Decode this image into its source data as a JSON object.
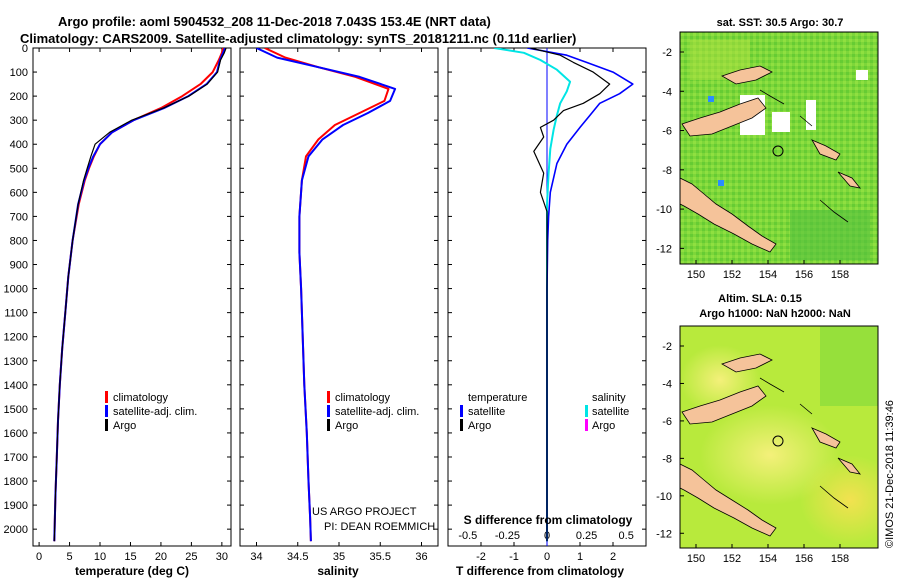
{
  "header": {
    "line1": "Argo profile: aoml 5904532_208 11-Dec-2018 7.043S 153.4E (NRT data)",
    "line2": "Climatology: CARS2009. Satellite-adjusted climatology: synTS_20181211.nc (0.11d earlier)"
  },
  "colors": {
    "climatology": "#ff0000",
    "satellite": "#0000ff",
    "argo": "#000000",
    "sat_salinity": "#00e5e5",
    "argo_salinity": "#ff00ff"
  },
  "depth_ticks": [
    0,
    100,
    200,
    300,
    400,
    500,
    600,
    700,
    800,
    900,
    1000,
    1100,
    1200,
    1300,
    1400,
    1500,
    1600,
    1700,
    1800,
    1900,
    2000
  ],
  "depth_tick_labels": [
    "0",
    "100",
    "200",
    "300",
    "400",
    "500",
    "600",
    "700",
    "800",
    "900",
    "1000",
    "1100",
    "1200",
    "1300",
    "1400",
    "1500",
    "1600",
    "1700",
    "1800",
    "1900",
    "2000"
  ],
  "chart_data": [
    {
      "type": "line",
      "id": "temperature",
      "xlabel": "temperature (deg C)",
      "ylabel": "depth",
      "xlim": [
        -1,
        31.5
      ],
      "ylim": [
        2070,
        0
      ],
      "xticks": [
        0,
        5,
        10,
        15,
        20,
        25,
        30
      ],
      "xtick_labels": [
        "0",
        "5",
        "10",
        "15",
        "20",
        "25",
        "30"
      ],
      "legend": [
        "climatology",
        "satellite-adj. clim.",
        "Argo"
      ],
      "series": [
        {
          "name": "climatology",
          "x": [
            30.2,
            30.0,
            29.5,
            28.5,
            26.5,
            23.5,
            20.0,
            15.5,
            12.0,
            10.0,
            9.0,
            8.2,
            7.5,
            6.5,
            5.5,
            4.8,
            4.3,
            3.8,
            3.4,
            3.1,
            2.9,
            2.7,
            2.6,
            2.5
          ],
          "y": [
            0,
            20,
            50,
            100,
            150,
            200,
            250,
            300,
            350,
            400,
            450,
            500,
            550,
            650,
            800,
            950,
            1100,
            1250,
            1400,
            1550,
            1700,
            1850,
            1950,
            2050
          ]
        },
        {
          "name": "satellite-adj. clim.",
          "x": [
            30.5,
            30.2,
            29.7,
            29.2,
            27.5,
            24.5,
            20.5,
            15.5,
            12.0,
            10.0,
            8.9,
            8.1,
            7.4,
            6.4,
            5.5,
            4.8,
            4.3,
            3.8,
            3.4,
            3.1,
            2.9,
            2.7,
            2.6,
            2.5
          ],
          "y": [
            0,
            20,
            50,
            100,
            150,
            200,
            250,
            300,
            350,
            400,
            450,
            500,
            550,
            650,
            800,
            950,
            1100,
            1250,
            1400,
            1550,
            1700,
            1850,
            1950,
            2050
          ]
        },
        {
          "name": "Argo",
          "x": [
            30.7,
            30.4,
            29.8,
            29.3,
            27.6,
            24.6,
            20.4,
            15.2,
            11.6,
            9.2,
            8.5,
            7.9,
            7.3,
            6.4,
            5.5,
            4.8,
            4.3,
            3.8,
            3.4,
            3.1,
            2.9,
            2.7,
            2.6,
            2.5
          ],
          "y": [
            0,
            20,
            50,
            100,
            150,
            200,
            250,
            300,
            350,
            400,
            450,
            500,
            550,
            650,
            800,
            950,
            1100,
            1250,
            1400,
            1550,
            1700,
            1850,
            1950,
            2050
          ]
        }
      ]
    },
    {
      "type": "line",
      "id": "salinity",
      "xlabel": "salinity",
      "ylabel": "depth",
      "xlim": [
        33.8,
        36.2
      ],
      "ylim": [
        2070,
        0
      ],
      "xticks": [
        34,
        34.5,
        35,
        35.5,
        36
      ],
      "xtick_labels": [
        "34",
        "34.5",
        "35",
        "35.5",
        "36"
      ],
      "legend": [
        "climatology",
        "satellite-adj. clim.",
        "Argo"
      ],
      "annotation": [
        "US ARGO PROJECT",
        "PI: DEAN ROEMMICH"
      ],
      "series": [
        {
          "name": "climatology",
          "x": [
            34.1,
            34.35,
            34.75,
            35.2,
            35.6,
            35.55,
            35.25,
            34.95,
            34.75,
            34.6,
            34.55,
            34.52,
            34.52,
            34.54,
            34.56,
            34.58,
            34.61,
            34.63,
            34.65,
            34.66
          ],
          "y": [
            0,
            40,
            80,
            120,
            170,
            220,
            270,
            320,
            380,
            450,
            550,
            700,
            850,
            1000,
            1200,
            1400,
            1600,
            1800,
            1950,
            2050
          ]
        },
        {
          "name": "satellite-adj. clim.",
          "x": [
            34.0,
            34.25,
            34.75,
            35.25,
            35.68,
            35.62,
            35.35,
            35.05,
            34.8,
            34.63,
            34.55,
            34.52,
            34.52,
            34.54,
            34.56,
            34.58,
            34.61,
            34.63,
            34.65,
            34.66
          ],
          "y": [
            0,
            40,
            80,
            120,
            170,
            220,
            270,
            320,
            380,
            450,
            550,
            700,
            850,
            1000,
            1200,
            1400,
            1600,
            1800,
            1950,
            2050
          ]
        },
        {
          "name": "Argo",
          "x": [],
          "y": []
        }
      ]
    },
    {
      "type": "line",
      "id": "difference",
      "xlabel": "T difference from climatology",
      "x2label": "S difference from climatology",
      "ylabel": "depth",
      "xlim": [
        -3,
        3
      ],
      "ylim": [
        2070,
        0
      ],
      "xticks": [
        -2,
        -1,
        0,
        1,
        2
      ],
      "xtick_labels": [
        "-2",
        "-1",
        "0",
        "1",
        "2"
      ],
      "x2ticks": [
        -0.5,
        -0.25,
        0,
        0.25,
        0.5
      ],
      "x2tick_labels": [
        "-0.5",
        "-0.25",
        "0",
        "0.25",
        "0.5"
      ],
      "legend_left_title": "temperature",
      "legend_right_title": "salinity",
      "legend_left": [
        "satellite",
        "Argo"
      ],
      "legend_right": [
        "satellite",
        "Argo"
      ],
      "series": [
        {
          "name": "temperature satellite",
          "x": [
            -0.6,
            0.6,
            1.2,
            2.0,
            2.6,
            2.2,
            1.6,
            1.3,
            1.0,
            0.6,
            0.3,
            0.1,
            0.05,
            0.02,
            0.0,
            0.0,
            0.0,
            0.0
          ],
          "y": [
            0,
            30,
            60,
            100,
            150,
            190,
            230,
            280,
            330,
            400,
            480,
            600,
            700,
            800,
            1000,
            1300,
            1700,
            2050
          ]
        },
        {
          "name": "temperature Argo",
          "x": [
            -0.5,
            0.4,
            0.8,
            1.4,
            1.9,
            1.6,
            1.1,
            0.5,
            0.2,
            -0.2,
            -0.1,
            -0.4,
            -0.1,
            -0.2,
            0.0,
            0.0,
            0.0,
            0.0,
            0.0,
            0.0
          ],
          "y": [
            0,
            30,
            60,
            100,
            150,
            190,
            230,
            260,
            300,
            330,
            370,
            430,
            520,
            600,
            680,
            800,
            1000,
            1300,
            1700,
            2050
          ]
        },
        {
          "name": "salinity satellite",
          "x": [
            -1.6,
            -0.7,
            -0.2,
            0.3,
            0.7,
            0.6,
            0.4,
            0.3,
            0.2,
            0.1,
            0.05,
            0.0,
            0.0,
            0.0,
            0.0,
            0.0
          ],
          "y": [
            0,
            20,
            50,
            90,
            140,
            180,
            230,
            280,
            340,
            420,
            520,
            650,
            800,
            1000,
            1500,
            2050
          ]
        }
      ]
    }
  ],
  "maps": [
    {
      "id": "sst",
      "title": "sat. SST: 30.5 Argo: 30.7",
      "xticks": [
        "150",
        "152",
        "154",
        "156",
        "158"
      ],
      "yticks": [
        "-2",
        "-4",
        "-6",
        "-8",
        "-10",
        "-12"
      ]
    },
    {
      "id": "sla",
      "title1": "Altim. SLA: 0.15",
      "title2": "Argo h1000: NaN h2000: NaN",
      "xticks": [
        "150",
        "152",
        "154",
        "156",
        "158"
      ],
      "yticks": [
        "-2",
        "-4",
        "-6",
        "-8",
        "-10",
        "-12"
      ]
    }
  ],
  "credit": "©IMOS 21-Dec-2018 11:39:46"
}
